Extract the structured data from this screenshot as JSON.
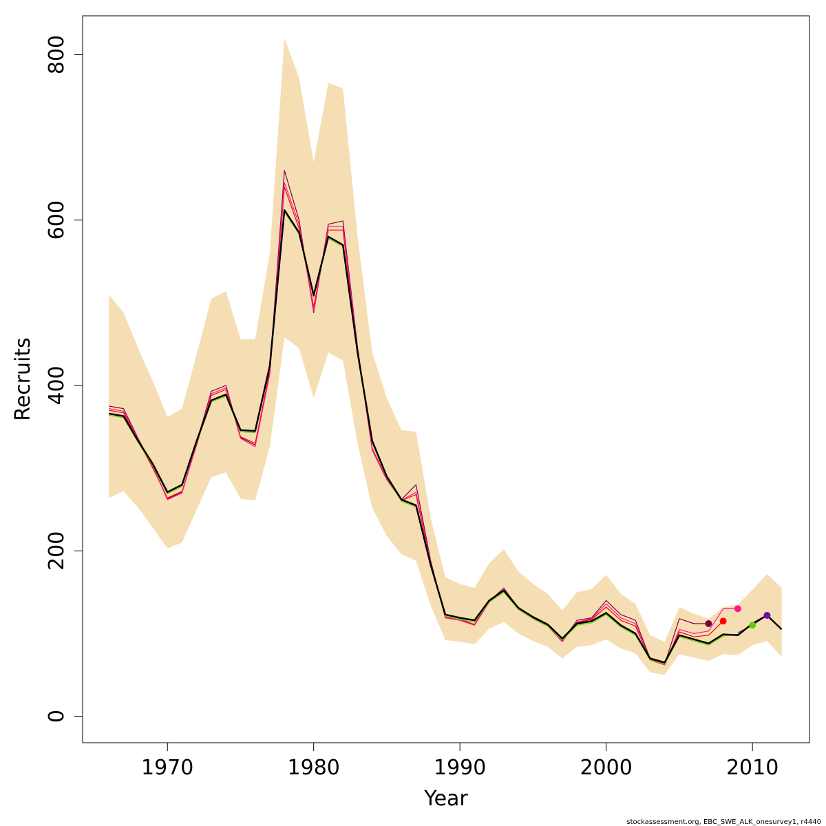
{
  "chart_data": {
    "type": "line",
    "xlabel": "Year",
    "ylabel": "Recruits",
    "xlim": [
      1964.2,
      2013.9
    ],
    "ylim": [
      -32,
      847
    ],
    "x_ticks": [
      1970,
      1980,
      1990,
      2000,
      2010
    ],
    "x_tick_labels": [
      "1970",
      "1980",
      "1990",
      "2000",
      "2010"
    ],
    "y_ticks": [
      0,
      200,
      400,
      600,
      800
    ],
    "y_tick_labels": [
      "0",
      "200",
      "400",
      "600",
      "800"
    ],
    "grid": false,
    "box": true,
    "footer": "stockassessment.org, EBC_SWE_ALK_onesurvey1, r4440",
    "confidence_band": {
      "x": [
        1966,
        1967,
        1968,
        1969,
        1970,
        1971,
        1972,
        1973,
        1974,
        1975,
        1976,
        1977,
        1978,
        1979,
        1980,
        1981,
        1982,
        1983,
        1984,
        1985,
        1986,
        1987,
        1988,
        1989,
        1990,
        1991,
        1992,
        1993,
        1994,
        1995,
        1996,
        1997,
        1998,
        1999,
        2000,
        2001,
        2002,
        2003,
        2004,
        2005,
        2006,
        2007,
        2008,
        2009,
        2010,
        2011,
        2012
      ],
      "upper": [
        510,
        488,
        445,
        405,
        362,
        372,
        438,
        505,
        514,
        456,
        456,
        560,
        820,
        772,
        670,
        766,
        759,
        580,
        440,
        385,
        346,
        344,
        240,
        168,
        160,
        155,
        185,
        202,
        175,
        160,
        148,
        128,
        150,
        154,
        171,
        148,
        136,
        98,
        90,
        132,
        124,
        118,
        132,
        135,
        153,
        172,
        155
      ],
      "lower": [
        264,
        272,
        252,
        228,
        203,
        210,
        250,
        289,
        295,
        263,
        261,
        326,
        458,
        445,
        385,
        440,
        430,
        330,
        252,
        218,
        196,
        188,
        134,
        92,
        90,
        87,
        106,
        114,
        100,
        91,
        84,
        70,
        84,
        86,
        93,
        82,
        76,
        53,
        50,
        75,
        71,
        67,
        75,
        74,
        86,
        91,
        72
      ],
      "color": "#f5deb3"
    },
    "series": [
      {
        "color": "#000000",
        "x": [
          1966,
          1967,
          1968,
          1969,
          1970,
          1971,
          1972,
          1973,
          1974,
          1975,
          1976,
          1977,
          1978,
          1979,
          1980,
          1981,
          1982,
          1983,
          1984,
          1985,
          1986,
          1987,
          1988,
          1989,
          1990,
          1991,
          1992,
          1993,
          1994,
          1995,
          1996,
          1997,
          1998,
          1999,
          2000,
          2001,
          2002,
          2003,
          2004,
          2005,
          2006,
          2007,
          2008,
          2009,
          2010,
          2011,
          2012
        ],
        "values": [
          366,
          363,
          333,
          305,
          271,
          280,
          333,
          382,
          389,
          346,
          345,
          424,
          612,
          585,
          509,
          580,
          570,
          440,
          333,
          290,
          262,
          255,
          183,
          123,
          119,
          116,
          140,
          152,
          131,
          120,
          111,
          94,
          112,
          115,
          125,
          110,
          100,
          70,
          65,
          98,
          93,
          88,
          99,
          98,
          112,
          122,
          105
        ]
      },
      {
        "color": "#66cc00",
        "x": [
          1966,
          1967,
          1968,
          1969,
          1970,
          1971,
          1972,
          1973,
          1974,
          1975,
          1976,
          1977,
          1978,
          1979,
          1980,
          1981,
          1982,
          1983,
          1984,
          1985,
          1986,
          1987,
          1988,
          1989,
          1990,
          1991,
          1992,
          1993,
          1994,
          1995,
          1996,
          1997,
          1998,
          1999,
          2000,
          2001,
          2002,
          2003,
          2004,
          2005,
          2006,
          2007,
          2008,
          2009,
          2010
        ],
        "values": [
          364,
          361,
          331,
          303,
          269,
          278,
          331,
          380,
          387,
          344,
          343,
          422,
          610,
          583,
          507,
          578,
          568,
          438,
          331,
          288,
          260,
          253,
          181,
          121,
          117,
          114,
          138,
          150,
          129,
          118,
          109,
          92,
          110,
          113,
          123,
          108,
          98,
          68,
          63,
          96,
          91,
          86,
          97,
          99,
          110
        ]
      },
      {
        "color": "#ff1493",
        "x": [
          1966,
          1967,
          1968,
          1969,
          1970,
          1971,
          1972,
          1973,
          1974,
          1975,
          1976,
          1977,
          1978,
          1979,
          1980,
          1981,
          1982,
          1983,
          1984,
          1985,
          1986,
          1987,
          1988,
          1989,
          1990,
          1991,
          1992,
          1993,
          1994,
          1995,
          1996,
          1997,
          1998,
          1999,
          2000,
          2001,
          2002,
          2003,
          2004,
          2005,
          2006,
          2007,
          2008,
          2009
        ],
        "values": [
          372,
          369,
          335,
          302,
          262,
          270,
          330,
          390,
          397,
          336,
          326,
          414,
          645,
          595,
          490,
          592,
          592,
          444,
          322,
          286,
          261,
          271,
          186,
          119,
          116,
          110,
          138,
          153,
          130,
          118,
          109,
          90,
          114,
          118,
          136,
          119,
          112,
          68,
          62,
          105,
          100,
          103,
          130,
          130
        ]
      },
      {
        "color": "#ff0000",
        "x": [
          1966,
          1967,
          1968,
          1969,
          1970,
          1971,
          1972,
          1973,
          1974,
          1975,
          1976,
          1977,
          1978,
          1979,
          1980,
          1981,
          1982,
          1983,
          1984,
          1985,
          1986,
          1987,
          1988,
          1989,
          1990,
          1991,
          1992,
          1993,
          1994,
          1995,
          1996,
          1997,
          1998,
          1999,
          2000,
          2001,
          2002,
          2003,
          2004,
          2005,
          2006,
          2007,
          2008
        ],
        "values": [
          370,
          367,
          333,
          300,
          264,
          272,
          328,
          388,
          395,
          338,
          330,
          416,
          640,
          590,
          495,
          588,
          588,
          442,
          324,
          287,
          261,
          268,
          184,
          120,
          116,
          111,
          138,
          153,
          130,
          118,
          109,
          91,
          113,
          117,
          132,
          116,
          109,
          69,
          63,
          102,
          96,
          98,
          115
        ]
      },
      {
        "color": "#800040",
        "x": [
          1966,
          1967,
          1968,
          1969,
          1970,
          1971,
          1972,
          1973,
          1974,
          1975,
          1976,
          1977,
          1978,
          1979,
          1980,
          1981,
          1982,
          1983,
          1984,
          1985,
          1986,
          1987,
          1988,
          1989,
          1990,
          1991,
          1992,
          1993,
          1994,
          1995,
          1996,
          1997,
          1998,
          1999,
          2000,
          2001,
          2002,
          2003,
          2004,
          2005,
          2006,
          2007
        ],
        "values": [
          375,
          372,
          336,
          302,
          263,
          271,
          331,
          393,
          400,
          337,
          328,
          418,
          660,
          600,
          488,
          595,
          599,
          446,
          322,
          286,
          262,
          280,
          188,
          120,
          117,
          111,
          139,
          155,
          131,
          119,
          110,
          91,
          116,
          119,
          140,
          123,
          116,
          70,
          63,
          118,
          112,
          112
        ]
      },
      {
        "color": "#7a1fa2",
        "x": [
          2009,
          2010,
          2011
        ],
        "values": [
          101,
          110,
          122
        ]
      }
    ],
    "points": [
      {
        "color": "#800040",
        "x": 2007,
        "y": 112
      },
      {
        "color": "#ff0000",
        "x": 2008,
        "y": 115
      },
      {
        "color": "#ff1493",
        "x": 2009,
        "y": 130
      },
      {
        "color": "#66cc00",
        "x": 2010,
        "y": 110
      },
      {
        "color": "#6a0dad",
        "x": 2011,
        "y": 122
      }
    ]
  }
}
